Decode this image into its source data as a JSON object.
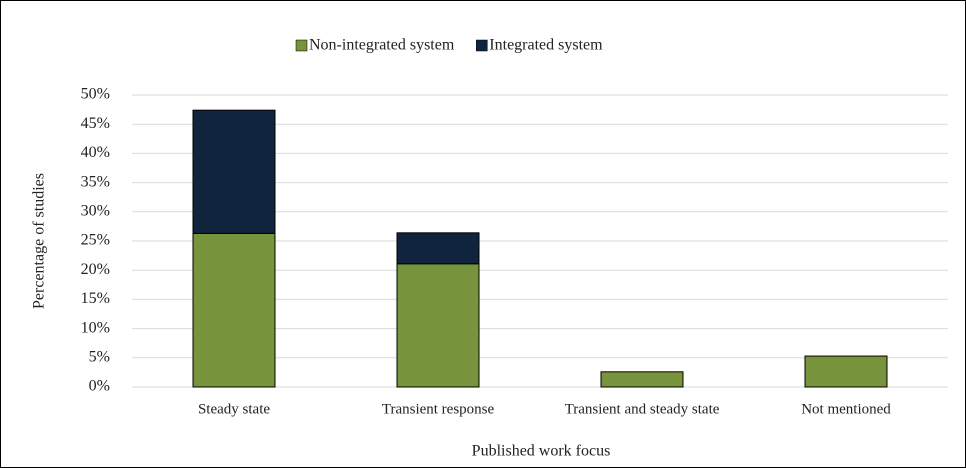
{
  "chart_data": {
    "type": "bar",
    "stacked": true,
    "y_label": "Percentage of studies",
    "x_label": "Published work focus",
    "categories": [
      "Steady state",
      "Transient response",
      "Transient and steady state",
      "Not mentioned"
    ],
    "series": [
      {
        "name": "Non-integrated system",
        "color": "#77933c",
        "values": [
          26.3,
          21.1,
          2.6,
          5.3
        ]
      },
      {
        "name": "Integrated system",
        "color": "#10243e",
        "values": [
          21.1,
          5.3,
          0,
          0
        ]
      }
    ],
    "ylim": [
      0,
      50
    ],
    "yticks": [
      {
        "value": 0,
        "label": "0%"
      },
      {
        "value": 5,
        "label": "5%"
      },
      {
        "value": 10,
        "label": "10%"
      },
      {
        "value": 15,
        "label": "15%"
      },
      {
        "value": 20,
        "label": "20%"
      },
      {
        "value": 25,
        "label": "25%"
      },
      {
        "value": 30,
        "label": "30%"
      },
      {
        "value": 35,
        "label": "35%"
      },
      {
        "value": 40,
        "label": "40%"
      },
      {
        "value": 45,
        "label": "45%"
      },
      {
        "value": 50,
        "label": "50%"
      }
    ],
    "grid": true,
    "legend": "top"
  }
}
